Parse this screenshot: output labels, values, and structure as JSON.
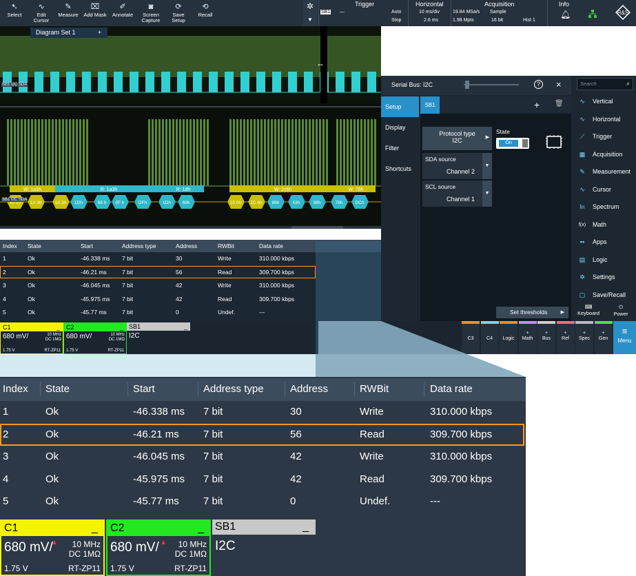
{
  "toolbar": {
    "buttons": [
      "Select",
      "Edit Cursor",
      "Measure",
      "Add Mask",
      "Annotate",
      "Screen Capture",
      "Save Setup",
      "Recall"
    ],
    "trigger": {
      "title": "Trigger",
      "sb": "SB1",
      "dash": "—",
      "mode": "Auto",
      "state": "Stop"
    },
    "horizontal": {
      "title": "Horizontal",
      "line1": "10 ms/div",
      "line2": "2.6 ms"
    },
    "acquisition": {
      "title": "Acquisition",
      "rate": "19.84 MSa/s",
      "mode": "Sample",
      "points": "1.98 Mpts",
      "bits": "16 bit",
      "hist": "Hist 1"
    },
    "info": {
      "title": "Info"
    }
  },
  "diagram_tab": {
    "label": "Diagram Set 1",
    "add": "+"
  },
  "scope": {
    "upper_label": "SB1 I2C SDA",
    "lower_label": "SB1 I2C SDA",
    "frames_top": [
      {
        "text": "W: 1a3h"
      },
      {
        "text": "R: 1a3h"
      },
      {
        "text": "R: 1dh"
      },
      {
        "text": "W: 2c6h"
      },
      {
        "text": "W: 76h"
      }
    ],
    "frames_bottom": [
      "30 0h",
      "1A 3h",
      "1A 3h",
      "1Dh",
      "88 h",
      "0F h",
      "DFh",
      "1Dh",
      "69h",
      "20 0h",
      "2C 6h",
      "89h",
      "63h",
      "98h",
      "76h",
      "DCh"
    ]
  },
  "dialog": {
    "title": "Serial Bus: I2C",
    "tabs": [
      "Setup",
      "Display",
      "Filter",
      "Shortcuts"
    ],
    "bus_tab": "SB1",
    "add": "+",
    "protocol_label": "Protocol type",
    "protocol_value": "I2C",
    "state_label": "State",
    "state_value": "On",
    "sda_label": "SDA source",
    "sda_value": "Channel 2",
    "scl_label": "SCL source",
    "scl_value": "Channel 1",
    "thresholds": "Set thresholds",
    "help": "?",
    "close": "×"
  },
  "search": {
    "placeholder": "Search"
  },
  "sidenav": {
    "items": [
      "Vertical",
      "Horizontal",
      "Trigger",
      "Acquisition",
      "Measurement",
      "Cursor",
      "Spectrum",
      "Math",
      "Apps",
      "Logic",
      "Settings",
      "Save/Recall"
    ],
    "keyboard": "Keyboard",
    "power": "Power",
    "math_icon": "f(x)"
  },
  "bottombar": {
    "buttons": [
      "C3",
      "C4",
      "Logic",
      "Math",
      "Bus",
      "Ref",
      "Spec",
      "Gen"
    ],
    "plus": "+",
    "menu": "Menu"
  },
  "table": {
    "headers": [
      "Index",
      "State",
      "Start",
      "Address type",
      "Address",
      "RWBit",
      "Data rate"
    ],
    "rows": [
      [
        "1",
        "Ok",
        "-46.338 ms",
        "7 bit",
        "30",
        "Write",
        "310.000 kbps"
      ],
      [
        "2",
        "Ok",
        "-46.21 ms",
        "7 bit",
        "56",
        "Read",
        "309.700 kbps"
      ],
      [
        "3",
        "Ok",
        "-46.045 ms",
        "7 bit",
        "42",
        "Write",
        "310.000 kbps"
      ],
      [
        "4",
        "Ok",
        "-45.975 ms",
        "7 bit",
        "42",
        "Read",
        "309.700 kbps"
      ],
      [
        "5",
        "Ok",
        "-45.77 ms",
        "7 bit",
        "0",
        "Undef.",
        "---"
      ]
    ],
    "selected_index": 1
  },
  "channels": {
    "c1": {
      "name": "C1",
      "scale": "680 mV/",
      "bw": "10 MHz",
      "coupling": "DC 1MΩ",
      "offset": "1.75 V",
      "probe": "RT-ZP11",
      "color": "#f4f400",
      "minimize": "_"
    },
    "c2": {
      "name": "C2",
      "scale": "680 mV/",
      "bw": "10 MHz",
      "coupling": "DC 1MΩ",
      "offset": "1.75 V",
      "probe": "RT-ZP11",
      "color": "#22e822",
      "minimize": "_"
    },
    "sb1": {
      "name": "SB1",
      "protocol": "I2C",
      "color": "#c8c8c8",
      "minimize": "_"
    }
  },
  "colors": {
    "accent": "#ff9a1e",
    "cyan": "#2fd0d0",
    "green": "#5a8a3a",
    "panel": "#1c2732"
  }
}
